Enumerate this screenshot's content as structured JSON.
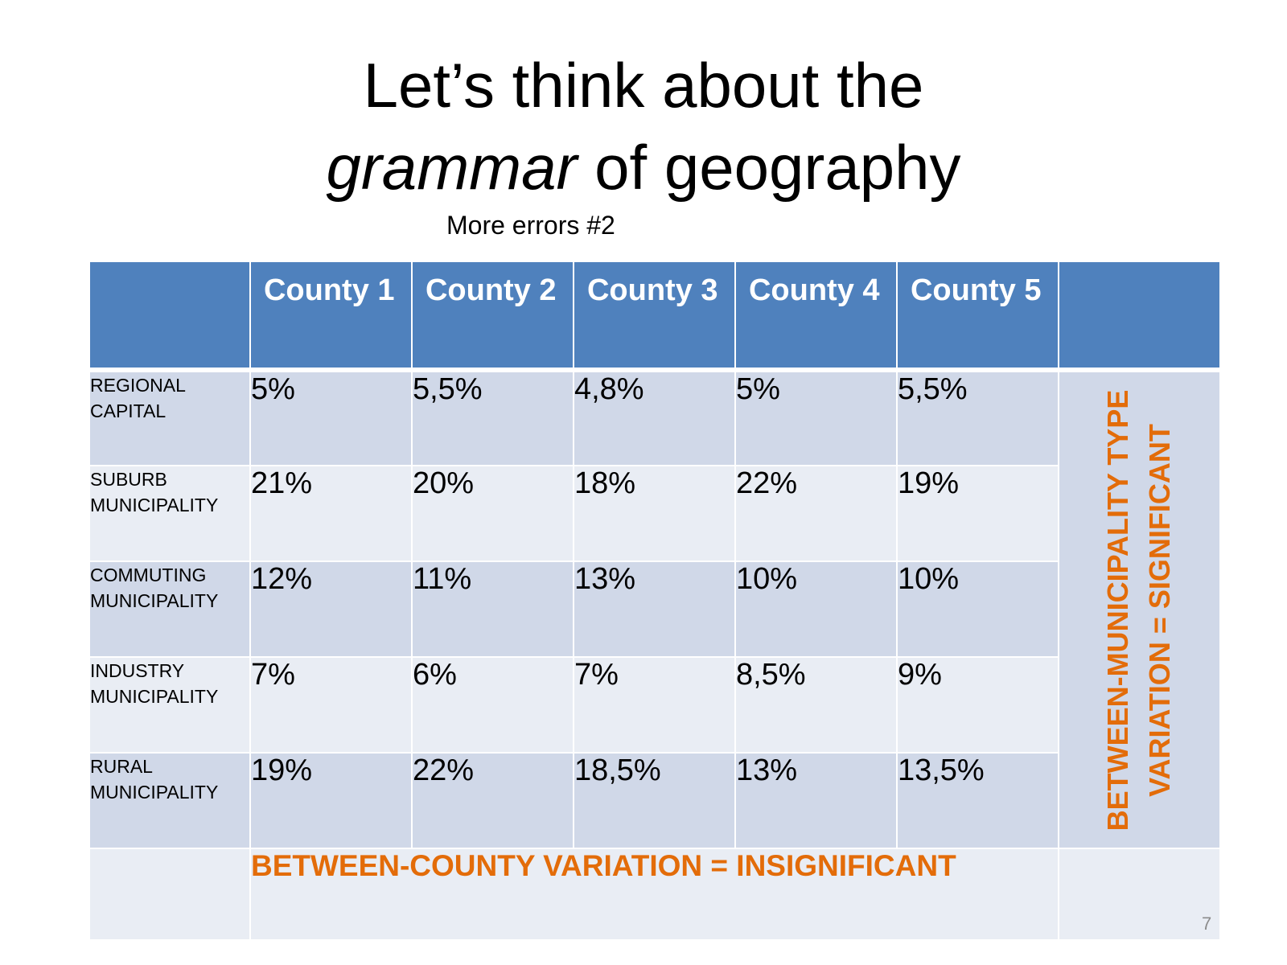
{
  "slide": {
    "title_line1": "Let’s think about the",
    "title_italic": "grammar",
    "title_rest": " of geography",
    "subtitle": "More errors #2",
    "page_number": "7"
  },
  "table": {
    "corner": "",
    "columns": [
      "County 1",
      "County 2",
      "County 3",
      "County 4",
      "County 5"
    ],
    "side_header": "",
    "rows": [
      {
        "label": "REGIONAL\nCAPITAL",
        "values": [
          "5%",
          "5,5%",
          "4,8%",
          "5%",
          "5,5%"
        ]
      },
      {
        "label": "SUBURB\nMUNICIPALITY",
        "values": [
          "21%",
          "20%",
          "18%",
          "22%",
          "19%"
        ]
      },
      {
        "label": "COMMUTING\nMUNICIPALITY",
        "values": [
          "12%",
          "11%",
          "13%",
          "10%",
          "10%"
        ]
      },
      {
        "label": "INDUSTRY\nMUNICIPALITY",
        "values": [
          "7%",
          "6%",
          "7%",
          "8,5%",
          "9%"
        ]
      },
      {
        "label": "RURAL\nMUNICIPALITY",
        "values": [
          "19%",
          "22%",
          "18,5%",
          "13%",
          "13,5%"
        ]
      }
    ],
    "side_annotation": "BETWEEN-MUNICIPALITY TYPE\nVARIATION = SIGNIFICANT",
    "bottom_annotation": "BETWEEN-COUNTY VARIATION = INSIGNIFICANT"
  },
  "colors": {
    "header_blue": "#4f81bd",
    "row_dark": "#d0d8e8",
    "row_light": "#e9edf4",
    "annotation_orange": "#e36c09"
  }
}
